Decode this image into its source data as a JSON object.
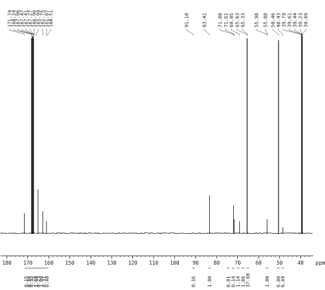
{
  "chart_data": {
    "type": "line",
    "title": "",
    "xlabel": "ppm",
    "x_axis": {
      "min": 34,
      "max": 183,
      "reversed": true,
      "ticks": [
        180,
        170,
        160,
        150,
        140,
        130,
        120,
        110,
        100,
        90,
        80,
        70,
        60,
        50,
        40
      ],
      "tick_labels": [
        "180",
        "170",
        "160",
        "150",
        "140",
        "130",
        "120",
        "110",
        "100",
        "90",
        "80",
        "70",
        "60",
        "50",
        "40"
      ],
      "unit_label": "ppm"
    },
    "grid": false,
    "peak_labels": [
      {
        "group": 1,
        "labels": [
          "171.74",
          "168.24",
          "167.96",
          "167.47",
          "167.41",
          "167.27",
          "166.96",
          "165.99",
          "162.75",
          "161.07",
          "160.51"
        ],
        "shifts": [
          171.74,
          168.24,
          167.96,
          167.47,
          167.41,
          167.27,
          166.96,
          165.99,
          162.75,
          161.07,
          160.51
        ]
      },
      {
        "group": 2,
        "labels": [
          "91.10",
          "83.42"
        ],
        "shifts": [
          91.1,
          83.42
        ]
      },
      {
        "group": 3,
        "labels": [
          "71.88",
          "71.61",
          "69.05",
          "65.63",
          "65.33"
        ],
        "shifts": [
          71.88,
          71.61,
          69.05,
          65.63,
          65.33
        ]
      },
      {
        "group": 4,
        "labels": [
          "55.98",
          "55.88"
        ],
        "shifts": [
          55.98,
          55.88
        ]
      },
      {
        "group": 5,
        "labels": [
          "50.46",
          "48.43",
          "39.79",
          "39.61",
          "39.44",
          "39.23",
          "39.09"
        ],
        "shifts": [
          50.46,
          48.43,
          39.79,
          39.61,
          39.44,
          39.23,
          39.09
        ]
      }
    ],
    "peaks": [
      {
        "ppm": 171.7,
        "height": 0.1
      },
      {
        "ppm": 168.2,
        "height": 0.98
      },
      {
        "ppm": 167.9,
        "height": 0.99
      },
      {
        "ppm": 167.5,
        "height": 0.99
      },
      {
        "ppm": 167.3,
        "height": 0.98
      },
      {
        "ppm": 165.2,
        "height": 0.22
      },
      {
        "ppm": 162.9,
        "height": 0.11
      },
      {
        "ppm": 161.1,
        "height": 0.06
      },
      {
        "ppm": 83.4,
        "height": 0.19
      },
      {
        "ppm": 72.0,
        "height": 0.14
      },
      {
        "ppm": 71.6,
        "height": 0.07
      },
      {
        "ppm": 69.1,
        "height": 0.06
      },
      {
        "ppm": 65.5,
        "height": 0.98
      },
      {
        "ppm": 56.0,
        "height": 0.07
      },
      {
        "ppm": 50.5,
        "height": 0.97
      },
      {
        "ppm": 48.4,
        "height": 0.03
      },
      {
        "ppm": 39.5,
        "height": 1.0
      },
      {
        "ppm": 39.2,
        "height": 0.99
      }
    ],
    "integrals": [
      {
        "ppm": 170.9,
        "label": "0.15"
      },
      {
        "ppm": 169.6,
        "label": "0.55"
      },
      {
        "ppm": 168.5,
        "label": "0.35"
      },
      {
        "ppm": 167.3,
        "label": "2.75"
      },
      {
        "ppm": 166.1,
        "label": "1.09"
      },
      {
        "ppm": 164.9,
        "label": "0.23"
      },
      {
        "ppm": 163.6,
        "label": "1.00"
      },
      {
        "ppm": 162.3,
        "label": "0.31"
      },
      {
        "ppm": 160.9,
        "label": "0.40"
      },
      {
        "ppm": 91.1,
        "label": "0.16"
      },
      {
        "ppm": 83.4,
        "label": "1.00"
      },
      {
        "ppm": 74.5,
        "label": "0.01"
      },
      {
        "ppm": 72.1,
        "label": "0.14"
      },
      {
        "ppm": 69.8,
        "label": "1.14"
      },
      {
        "ppm": 67.4,
        "label": "1.86"
      },
      {
        "ppm": 65.1,
        "label": "37.69"
      },
      {
        "ppm": 56.0,
        "label": "1.00"
      },
      {
        "ppm": 50.6,
        "label": "6.00"
      },
      {
        "ppm": 48.5,
        "label": "6.49"
      }
    ]
  }
}
